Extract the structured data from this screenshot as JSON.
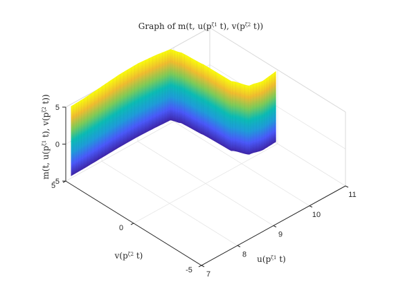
{
  "chart_data": {
    "type": "surface",
    "title": "Graph of m(t, u(p^{ζ1} t), v(p^{ζ2} t))",
    "xlabel": "u(p^{ζ1} t)",
    "ylabel": "v(p^{ζ2} t)",
    "zlabel": "m(t, u(p^{ζ1} t), v(p^{ζ2} t))",
    "xlim": [
      7,
      11
    ],
    "ylim": [
      -5,
      5
    ],
    "zlim": [
      -5,
      5
    ],
    "xticks": [
      "7",
      "8",
      "9",
      "10",
      "11"
    ],
    "yticks": [
      "-5",
      "0",
      "5"
    ],
    "zticks": [
      "-5",
      "0",
      "5"
    ],
    "grid": true,
    "colormap": "parula",
    "colormap_stops": [
      "#3e26a8",
      "#4a5afa",
      "#1f9cd9",
      "#0bbcb4",
      "#80cb58",
      "#f0bc30",
      "#f9fb0e"
    ],
    "surface": {
      "description_free_samples": true,
      "curve_u": [
        7.15,
        7.5,
        8.0,
        8.5,
        9.0,
        9.5,
        9.9,
        10.0,
        10.05,
        10.1,
        10.3,
        10.6,
        10.95
      ],
      "curve_v": [
        5.0,
        5.0,
        5.0,
        5.0,
        5.0,
        5.0,
        5.0,
        4.5,
        3.0,
        1.0,
        0.2,
        0.0,
        0.0
      ],
      "z_top_offset": [
        -0.2,
        -0.1,
        0.2,
        0.5,
        0.6,
        0.4,
        0.1,
        0.0,
        0.0,
        -0.2,
        -0.4,
        -0.3,
        0.0
      ],
      "z_range": [
        -4.6,
        4.9
      ]
    }
  }
}
